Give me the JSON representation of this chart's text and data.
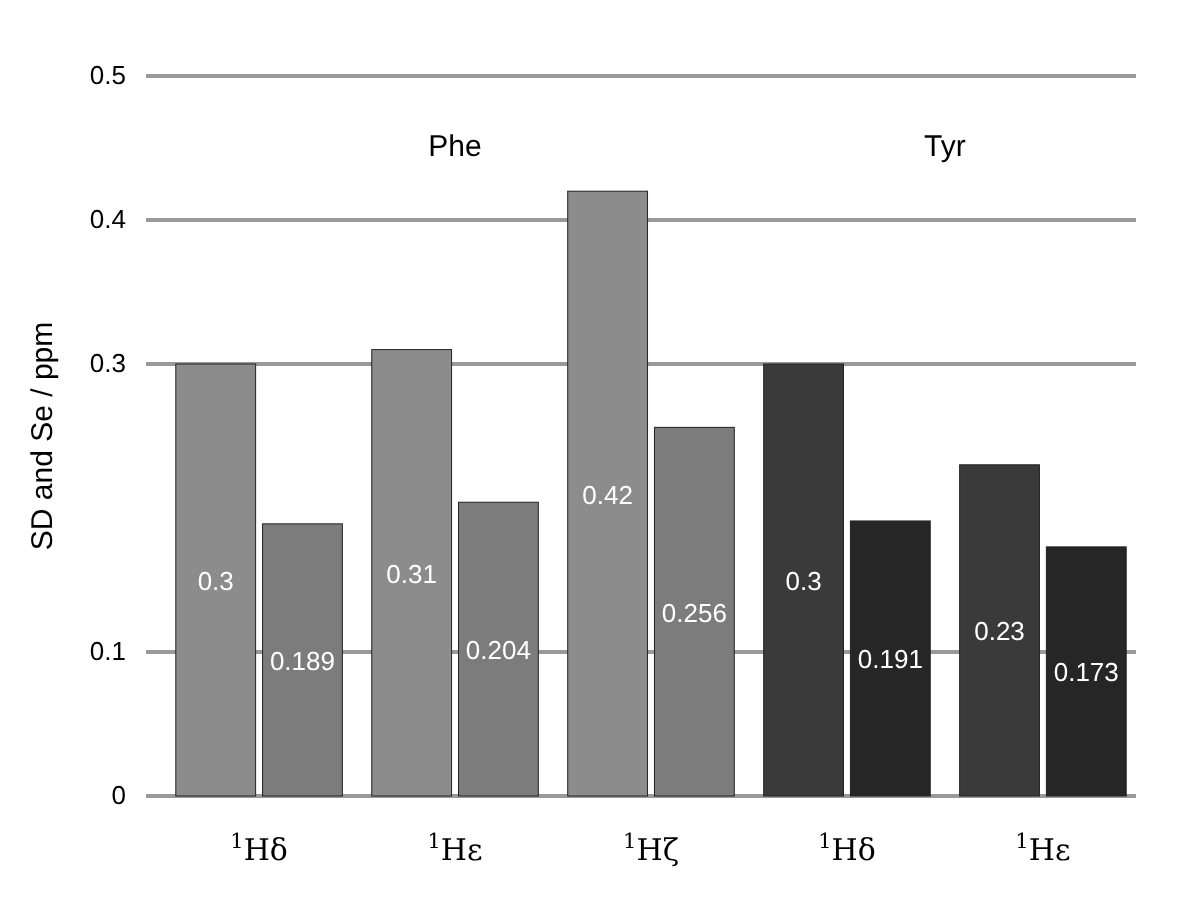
{
  "chart_data": {
    "type": "bar",
    "ylabel": "SD and Se / ppm",
    "categories": [
      "$^{1}$Hδ",
      "$^{1}$Hε",
      "$^{1}$Hζ",
      "$^{1}$Hδ",
      "$^{1}$Hε"
    ],
    "series": [
      {
        "colors": [
          "#8c8c8c",
          "#8c8c8c",
          "#8c8c8c",
          "#3a3a3a",
          "#3a3a3a"
        ],
        "values": [
          0.3,
          0.31,
          0.42,
          0.3,
          0.23
        ]
      },
      {
        "colors": [
          "#7c7c7c",
          "#7c7c7c",
          "#7c7c7c",
          "#262626",
          "#262626"
        ],
        "values": [
          0.189,
          0.204,
          0.256,
          0.191,
          0.173
        ]
      }
    ],
    "annotations": [
      "Phe",
      "Tyr"
    ],
    "ylim": [
      0,
      0.5
    ],
    "yticks": [
      0,
      0.1,
      0.3,
      0.4,
      0.5
    ],
    "grid": "y",
    "data_labels": true
  }
}
